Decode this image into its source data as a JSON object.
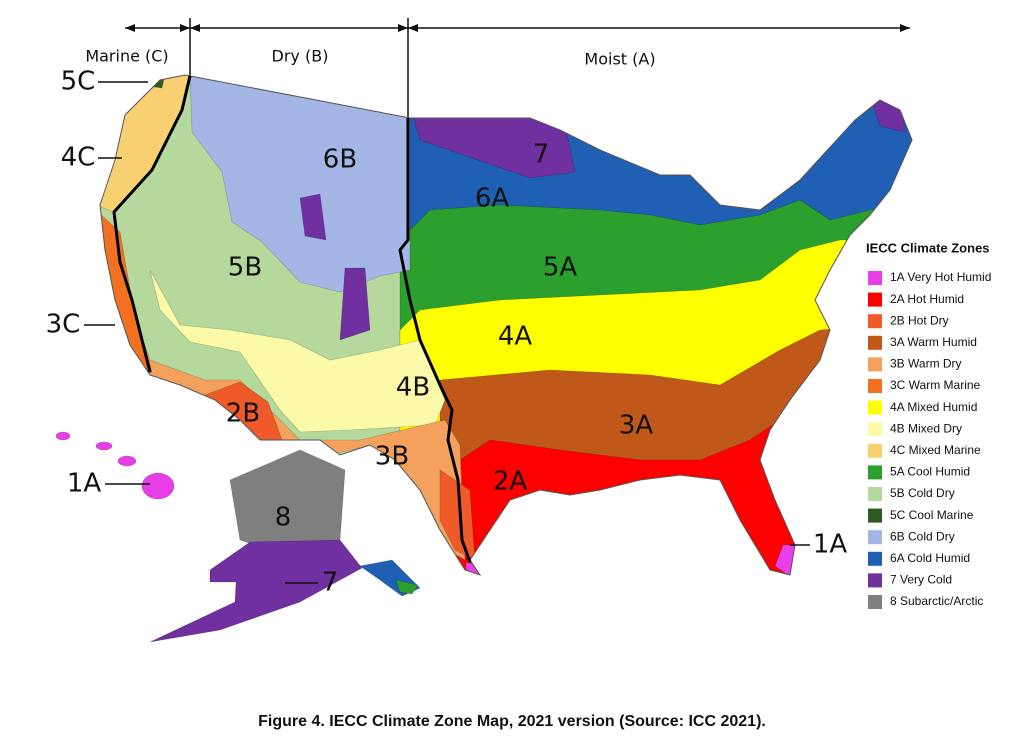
{
  "regions": [
    {
      "label": "Marine (C)"
    },
    {
      "label": "Dry (B)"
    },
    {
      "label": "Moist (A)"
    }
  ],
  "map_labels": [
    "5C",
    "4C",
    "3C",
    "1A",
    "8",
    "7",
    "6B",
    "5B",
    "2B",
    "3B",
    "4B",
    "6A",
    "7",
    "5A",
    "4A",
    "3A",
    "2A",
    "1A"
  ],
  "legend": {
    "title": "IECC Climate Zones",
    "items": [
      {
        "label": "1A Very Hot Humid",
        "color": "#e83ee8"
      },
      {
        "label": "2A Hot Humid",
        "color": "#ff0000"
      },
      {
        "label": "2B Hot Dry",
        "color": "#f05a28"
      },
      {
        "label": "3A Warm Humid",
        "color": "#c0581a"
      },
      {
        "label": "3B Warm Dry",
        "color": "#f4a15d"
      },
      {
        "label": "3C Warm Marine",
        "color": "#f37021"
      },
      {
        "label": "4A Mixed Humid",
        "color": "#ffff00"
      },
      {
        "label": "4B Mixed Dry",
        "color": "#fafaa8"
      },
      {
        "label": "4C Mixed Marine",
        "color": "#f9d071"
      },
      {
        "label": "5A Cool Humid",
        "color": "#2ca02c"
      },
      {
        "label": "5B Cold Dry",
        "color": "#b5d99c"
      },
      {
        "label": "5C Cool Marine",
        "color": "#2e5a1f"
      },
      {
        "label": "6B Cold Dry",
        "color": "#a3b6e6"
      },
      {
        "label": "6A Cold Humid",
        "color": "#1f5fb4"
      },
      {
        "label": "7 Very Cold",
        "color": "#7030a0"
      },
      {
        "label": "8 Subarctic/Arctic",
        "color": "#7f7f7f"
      }
    ]
  },
  "caption": "Figure 4. IECC Climate Zone Map, 2021 version (Source: ICC 2021)."
}
